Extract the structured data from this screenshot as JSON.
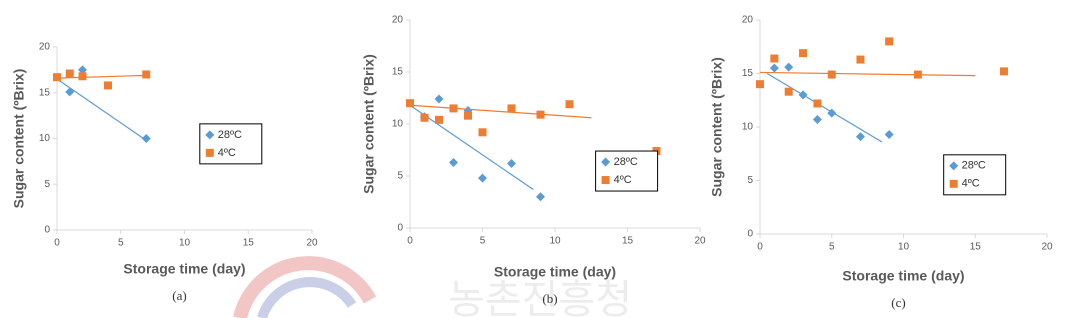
{
  "chart_data": [
    {
      "type": "scatter",
      "caption": "(a)",
      "xlabel": "Storage time (day)",
      "ylabel": "Sugar content (ºBrix)",
      "xlim": [
        0,
        20
      ],
      "ylim": [
        0,
        20
      ],
      "xticks": [
        0,
        5,
        10,
        15,
        20
      ],
      "yticks": [
        0,
        5,
        10,
        15,
        20
      ],
      "legend": "center right",
      "series": [
        {
          "name": "28ºC",
          "color": "#5b9bd5",
          "marker": "diamond",
          "x": [
            1,
            2,
            7
          ],
          "values": [
            15.1,
            17.5,
            10
          ],
          "trendline": {
            "x": [
              0,
              7
            ],
            "values": [
              16.5,
              9.8
            ]
          }
        },
        {
          "name": "4ºC",
          "color": "#ed7d31",
          "marker": "square",
          "x": [
            0,
            1,
            2,
            4,
            7
          ],
          "values": [
            16.7,
            17.1,
            16.8,
            15.8,
            17
          ],
          "trendline": {
            "x": [
              0,
              7
            ],
            "values": [
              16.6,
              16.9
            ]
          }
        }
      ]
    },
    {
      "type": "scatter",
      "caption": "(b)",
      "xlabel": "Storage time (day)",
      "ylabel": "Sugar content (ºBrix)",
      "xlim": [
        0,
        20
      ],
      "ylim": [
        0,
        20
      ],
      "xticks": [
        0,
        5,
        10,
        15,
        20
      ],
      "yticks": [
        0,
        5,
        10,
        15,
        20
      ],
      "legend": "lower right",
      "series": [
        {
          "name": "28ºC",
          "color": "#5b9bd5",
          "marker": "diamond",
          "x": [
            1,
            2,
            3,
            4,
            5,
            7,
            9
          ],
          "values": [
            10.7,
            12.4,
            6.3,
            11.3,
            4.8,
            6.2,
            3
          ],
          "trendline": {
            "x": [
              0,
              8.5
            ],
            "values": [
              11.8,
              3.7
            ]
          }
        },
        {
          "name": "4ºC",
          "color": "#ed7d31",
          "marker": "square",
          "x": [
            0,
            1,
            2,
            3,
            4,
            5,
            7,
            9,
            11,
            17
          ],
          "values": [
            12,
            10.6,
            10.4,
            11.5,
            10.8,
            9.2,
            11.5,
            10.9,
            11.9,
            7.4
          ],
          "trendline": {
            "x": [
              0,
              12.5
            ],
            "values": [
              11.8,
              10.6
            ]
          }
        }
      ]
    },
    {
      "type": "scatter",
      "caption": "(c)",
      "xlabel": "Storage time (day)",
      "ylabel": "Sugar content (ºBrix)",
      "xlim": [
        0,
        20
      ],
      "ylim": [
        0,
        20
      ],
      "xticks": [
        0,
        5,
        10,
        15,
        20
      ],
      "yticks": [
        0,
        5,
        10,
        15,
        20
      ],
      "legend": "lower right",
      "series": [
        {
          "name": "28ºC",
          "color": "#5b9bd5",
          "marker": "diamond",
          "x": [
            1,
            2,
            3,
            4,
            5,
            7,
            9
          ],
          "values": [
            15.5,
            15.6,
            13,
            10.7,
            11.3,
            9.1,
            9.3
          ],
          "trendline": {
            "x": [
              0.5,
              8.5
            ],
            "values": [
              15,
              8.6
            ]
          }
        },
        {
          "name": "4ºC",
          "color": "#ed7d31",
          "marker": "square",
          "x": [
            0,
            1,
            2,
            3,
            4,
            5,
            7,
            9,
            11,
            17
          ],
          "values": [
            14,
            16.4,
            13.3,
            16.9,
            12.2,
            14.9,
            16.3,
            18,
            14.9,
            15.2
          ],
          "trendline": {
            "x": [
              0,
              15
            ],
            "values": [
              15.1,
              14.8
            ]
          }
        }
      ]
    }
  ],
  "watermark": "농촌진흥청"
}
